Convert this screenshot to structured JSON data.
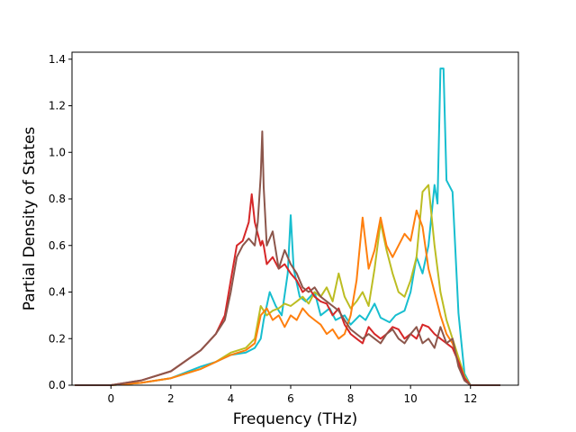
{
  "chart_data": {
    "type": "line",
    "title": "",
    "xlabel": "Frequency (THz)",
    "ylabel": "Partial Density of States",
    "xlim": [
      -1.3,
      13.6
    ],
    "ylim": [
      0,
      1.43
    ],
    "xticks": [
      0,
      2,
      4,
      6,
      8,
      10,
      12
    ],
    "yticks": [
      0.0,
      0.2,
      0.4,
      0.6,
      0.8,
      1.0,
      1.2,
      1.4
    ],
    "xtick_labels": [
      "0",
      "2",
      "4",
      "6",
      "8",
      "10",
      "12"
    ],
    "ytick_labels": [
      "0.0",
      "0.2",
      "0.4",
      "0.6",
      "0.8",
      "1.0",
      "1.2",
      "1.4"
    ],
    "grid": false,
    "legend": "none",
    "series": [
      {
        "color": "#17becf",
        "x": [
          -1.2,
          0,
          1,
          2,
          3,
          3.5,
          4,
          4.5,
          4.8,
          5.0,
          5.1,
          5.3,
          5.5,
          5.7,
          5.9,
          6.0,
          6.1,
          6.3,
          6.5,
          6.8,
          7.0,
          7.3,
          7.5,
          7.8,
          8.0,
          8.3,
          8.5,
          8.8,
          9.0,
          9.3,
          9.5,
          9.8,
          10.0,
          10.2,
          10.4,
          10.6,
          10.8,
          10.9,
          11.0,
          11.1,
          11.2,
          11.4,
          11.6,
          11.8,
          12.0,
          13.0
        ],
        "y": [
          0,
          0,
          0.01,
          0.03,
          0.08,
          0.1,
          0.13,
          0.14,
          0.16,
          0.2,
          0.28,
          0.4,
          0.34,
          0.3,
          0.48,
          0.73,
          0.5,
          0.38,
          0.36,
          0.4,
          0.3,
          0.33,
          0.28,
          0.3,
          0.26,
          0.3,
          0.28,
          0.35,
          0.29,
          0.27,
          0.3,
          0.32,
          0.4,
          0.55,
          0.48,
          0.6,
          0.86,
          0.78,
          1.36,
          1.36,
          0.88,
          0.83,
          0.31,
          0.05,
          0,
          0
        ]
      },
      {
        "color": "#bcbd22",
        "x": [
          -1.2,
          0,
          1,
          2,
          3,
          3.5,
          4,
          4.5,
          4.8,
          5.0,
          5.2,
          5.4,
          5.6,
          5.8,
          6.0,
          6.2,
          6.4,
          6.6,
          6.8,
          7.0,
          7.2,
          7.4,
          7.6,
          7.8,
          8.0,
          8.2,
          8.4,
          8.6,
          8.8,
          9.0,
          9.2,
          9.4,
          9.6,
          9.8,
          10.0,
          10.2,
          10.4,
          10.6,
          10.8,
          11.0,
          11.2,
          11.4,
          11.6,
          11.8,
          12.0,
          13.0
        ],
        "y": [
          0,
          0,
          0.01,
          0.03,
          0.07,
          0.1,
          0.14,
          0.16,
          0.2,
          0.34,
          0.3,
          0.32,
          0.33,
          0.35,
          0.34,
          0.36,
          0.38,
          0.35,
          0.4,
          0.38,
          0.42,
          0.36,
          0.48,
          0.38,
          0.33,
          0.36,
          0.4,
          0.34,
          0.5,
          0.7,
          0.58,
          0.48,
          0.4,
          0.38,
          0.45,
          0.55,
          0.83,
          0.86,
          0.6,
          0.4,
          0.28,
          0.2,
          0.12,
          0.04,
          0,
          0
        ]
      },
      {
        "color": "#ff7f0e",
        "x": [
          -1.2,
          0,
          1,
          2,
          3,
          3.5,
          4,
          4.5,
          4.8,
          5.0,
          5.2,
          5.4,
          5.6,
          5.8,
          6.0,
          6.2,
          6.4,
          6.6,
          6.8,
          7.0,
          7.2,
          7.4,
          7.6,
          7.8,
          8.0,
          8.2,
          8.4,
          8.6,
          8.8,
          9.0,
          9.2,
          9.4,
          9.6,
          9.8,
          10.0,
          10.2,
          10.4,
          10.6,
          10.8,
          11.0,
          11.2,
          11.4,
          11.6,
          11.8,
          12.0,
          13.0
        ],
        "y": [
          0,
          0,
          0.01,
          0.03,
          0.07,
          0.1,
          0.13,
          0.15,
          0.18,
          0.3,
          0.33,
          0.28,
          0.3,
          0.25,
          0.3,
          0.28,
          0.33,
          0.3,
          0.28,
          0.26,
          0.22,
          0.24,
          0.2,
          0.22,
          0.3,
          0.45,
          0.72,
          0.5,
          0.58,
          0.72,
          0.6,
          0.55,
          0.6,
          0.65,
          0.62,
          0.75,
          0.68,
          0.5,
          0.4,
          0.3,
          0.22,
          0.18,
          0.1,
          0.03,
          0,
          0
        ]
      },
      {
        "color": "#d62728",
        "x": [
          -1.2,
          0,
          1,
          2,
          3,
          3.5,
          3.8,
          4.0,
          4.2,
          4.4,
          4.6,
          4.7,
          4.8,
          5.0,
          5.05,
          5.1,
          5.2,
          5.4,
          5.6,
          5.8,
          6.0,
          6.2,
          6.4,
          6.6,
          6.8,
          7.0,
          7.2,
          7.4,
          7.6,
          7.8,
          8.0,
          8.2,
          8.4,
          8.6,
          8.8,
          9.0,
          9.2,
          9.4,
          9.6,
          9.8,
          10.0,
          10.2,
          10.4,
          10.6,
          10.8,
          11.0,
          11.2,
          11.4,
          11.6,
          11.8,
          12.0,
          13.0
        ],
        "y": [
          0,
          0,
          0.02,
          0.06,
          0.15,
          0.22,
          0.3,
          0.45,
          0.6,
          0.62,
          0.7,
          0.82,
          0.7,
          0.6,
          0.62,
          0.6,
          0.52,
          0.55,
          0.5,
          0.52,
          0.48,
          0.45,
          0.4,
          0.42,
          0.38,
          0.36,
          0.35,
          0.3,
          0.33,
          0.26,
          0.22,
          0.2,
          0.18,
          0.25,
          0.22,
          0.2,
          0.22,
          0.25,
          0.24,
          0.2,
          0.22,
          0.2,
          0.26,
          0.25,
          0.22,
          0.2,
          0.18,
          0.16,
          0.1,
          0.03,
          0,
          0
        ]
      },
      {
        "color": "#8c564b",
        "x": [
          -1.2,
          0,
          1,
          2,
          3,
          3.5,
          3.8,
          4.0,
          4.2,
          4.4,
          4.6,
          4.8,
          4.9,
          5.0,
          5.05,
          5.1,
          5.2,
          5.4,
          5.6,
          5.8,
          6.0,
          6.2,
          6.4,
          6.6,
          6.8,
          7.0,
          7.2,
          7.4,
          7.6,
          7.8,
          8.0,
          8.2,
          8.4,
          8.6,
          8.8,
          9.0,
          9.2,
          9.4,
          9.6,
          9.8,
          10.0,
          10.2,
          10.4,
          10.6,
          10.8,
          11.0,
          11.2,
          11.4,
          11.6,
          11.8,
          12.0,
          13.0
        ],
        "y": [
          0,
          0,
          0.02,
          0.06,
          0.15,
          0.22,
          0.28,
          0.4,
          0.55,
          0.6,
          0.63,
          0.6,
          0.7,
          0.9,
          1.09,
          0.85,
          0.6,
          0.66,
          0.5,
          0.58,
          0.52,
          0.48,
          0.42,
          0.4,
          0.42,
          0.38,
          0.36,
          0.34,
          0.32,
          0.28,
          0.24,
          0.22,
          0.2,
          0.22,
          0.2,
          0.18,
          0.22,
          0.24,
          0.2,
          0.18,
          0.22,
          0.25,
          0.18,
          0.2,
          0.16,
          0.25,
          0.18,
          0.2,
          0.08,
          0.02,
          0,
          0
        ]
      }
    ]
  }
}
